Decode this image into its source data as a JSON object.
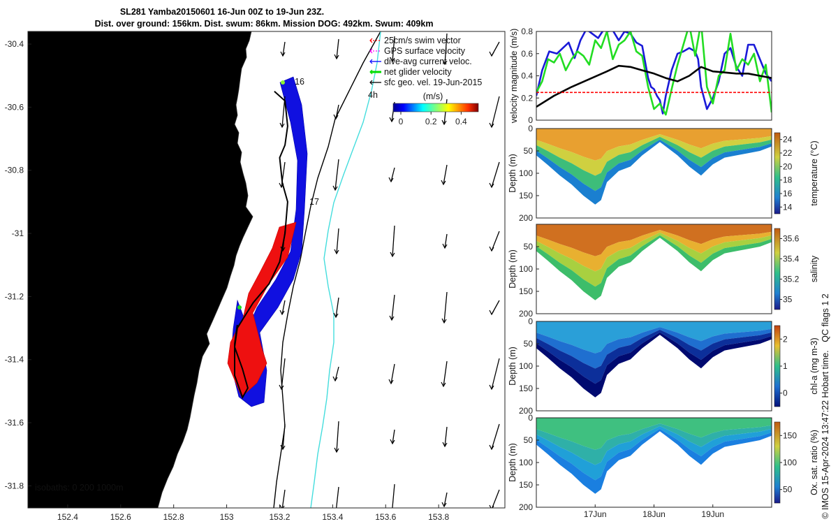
{
  "title": {
    "line1": "SL281 Yamba20150601 16-Jun 00Z to 19-Jun 23Z.",
    "line2": "Dist. over ground: 156km. Dist. swum: 86km. Mission DOG: 492km. Swum: 409km"
  },
  "map": {
    "legend": [
      "25cm/s swim vector",
      "GPS surface velocity",
      "dive-avg current veloc.",
      "net glider velocity",
      "sfc geo. vel. 19-Jun-2015"
    ],
    "legend_colors": [
      "#ff0000",
      "#ff00ff",
      "#0000ff",
      "#00dd00",
      "#000000"
    ],
    "colorbar_title": "(m/s)",
    "colorbar_ticks": [
      "0",
      "0.2",
      "0.4"
    ],
    "isobaths": "isobaths: 0   200  1000m",
    "day_labels": [
      "16",
      "17",
      "4h"
    ],
    "land_color": "#f9c895",
    "current_color": "#44dddd"
  },
  "chart_data": [
    {
      "type": "scatter",
      "name": "glider-track-map",
      "x_ticks": [
        "152.4",
        "152.6",
        "152.8",
        "153",
        "153.2",
        "153.4",
        "153.6",
        "153.8"
      ],
      "y_ticks": [
        "-30.4",
        "-30.6",
        "-30.8",
        "-31",
        "-31.2",
        "-31.4",
        "-31.6",
        "-31.8"
      ],
      "xlim": [
        152.25,
        154.05
      ],
      "ylim": [
        -31.87,
        -30.36
      ],
      "track": [
        [
          153.18,
          -30.55
        ],
        [
          153.22,
          -30.58
        ],
        [
          153.23,
          -30.66
        ],
        [
          153.22,
          -30.72
        ],
        [
          153.2,
          -30.76
        ],
        [
          153.21,
          -30.84
        ],
        [
          153.23,
          -30.9
        ],
        [
          153.22,
          -31.0
        ],
        [
          153.2,
          -31.09
        ],
        [
          153.16,
          -31.16
        ],
        [
          153.1,
          -31.22
        ],
        [
          153.07,
          -31.26
        ],
        [
          153.04,
          -31.3
        ],
        [
          153.03,
          -31.36
        ],
        [
          153.06,
          -31.43
        ],
        [
          153.08,
          -31.49
        ],
        [
          153.06,
          -31.52
        ],
        [
          153.03,
          -31.45
        ],
        [
          153.03,
          -31.35
        ],
        [
          153.04,
          -31.29
        ]
      ]
    },
    {
      "type": "line",
      "name": "velocity-magnitude",
      "ylabel": "velocity magnitude (m/s)",
      "y_ticks": [
        "0",
        "0.2",
        "0.4",
        "0.6",
        "0.8"
      ],
      "ylim": [
        0,
        0.8
      ],
      "xlim_days": [
        0,
        4
      ],
      "series": [
        {
          "color": "#1a1ad8",
          "x": [
            0,
            0.1,
            0.22,
            0.35,
            0.45,
            0.55,
            0.65,
            0.75,
            0.85,
            0.95,
            1.05,
            1.15,
            1.2,
            1.3,
            1.4,
            1.5,
            1.6,
            1.7,
            1.8,
            1.9,
            1.95,
            2.0,
            2.05,
            2.1,
            2.15,
            2.2,
            2.3,
            2.4,
            2.5,
            2.6,
            2.7,
            2.75,
            2.8,
            2.9,
            3.0,
            3.1,
            3.2,
            3.3,
            3.4,
            3.5,
            3.6,
            3.7,
            3.8,
            3.9,
            4.0
          ],
          "values": [
            0.22,
            0.45,
            0.62,
            0.6,
            0.65,
            0.7,
            0.56,
            0.72,
            0.82,
            0.78,
            0.74,
            0.82,
            0.8,
            0.81,
            0.72,
            0.8,
            0.78,
            0.7,
            0.67,
            0.38,
            0.3,
            0.28,
            0.22,
            0.18,
            0.06,
            0.22,
            0.45,
            0.6,
            0.62,
            0.65,
            0.62,
            0.55,
            0.3,
            0.1,
            0.2,
            0.35,
            0.6,
            0.65,
            0.48,
            0.4,
            0.68,
            0.68,
            0.55,
            0.42,
            0.35
          ]
        },
        {
          "color": "#22dd22",
          "x": [
            0,
            0.1,
            0.2,
            0.3,
            0.4,
            0.5,
            0.6,
            0.7,
            0.8,
            0.9,
            1.0,
            1.1,
            1.2,
            1.3,
            1.4,
            1.5,
            1.6,
            1.7,
            1.8,
            1.9,
            2.0,
            2.1,
            2.2,
            2.3,
            2.4,
            2.5,
            2.6,
            2.7,
            2.8,
            2.9,
            3.0,
            3.1,
            3.2,
            3.3,
            3.4,
            3.5,
            3.6,
            3.7,
            3.8,
            3.9,
            4.0
          ],
          "values": [
            0.25,
            0.35,
            0.55,
            0.52,
            0.6,
            0.45,
            0.55,
            0.62,
            0.58,
            0.5,
            0.72,
            0.65,
            0.8,
            0.55,
            0.68,
            0.72,
            0.8,
            0.62,
            0.58,
            0.3,
            0.1,
            0.15,
            0.05,
            0.28,
            0.5,
            0.68,
            0.86,
            0.58,
            0.88,
            0.3,
            0.15,
            0.4,
            0.45,
            0.78,
            0.45,
            0.55,
            0.5,
            0.6,
            0.35,
            0.5,
            0.07
          ]
        },
        {
          "color": "#000000",
          "x": [
            0,
            0.3,
            0.6,
            0.9,
            1.2,
            1.4,
            1.6,
            1.8,
            2.0,
            2.2,
            2.4,
            2.6,
            2.8,
            3.0,
            3.2,
            3.4,
            3.6,
            3.8,
            4.0
          ],
          "values": [
            0.12,
            0.22,
            0.3,
            0.37,
            0.44,
            0.49,
            0.48,
            0.45,
            0.42,
            0.38,
            0.35,
            0.4,
            0.48,
            0.44,
            0.43,
            0.42,
            0.42,
            0.4,
            0.38
          ]
        },
        {
          "color": "#ff0000",
          "dashed": true,
          "x": [
            0,
            4
          ],
          "values": [
            0.25,
            0.25
          ]
        }
      ]
    },
    {
      "type": "heatmap",
      "name": "temperature-section",
      "ylabel": "Depth (m)",
      "colorbar_label": "temperature (°C)",
      "colorbar_ticks": [
        "14",
        "16",
        "18",
        "20",
        "22",
        "24"
      ],
      "y_ticks": [
        "0",
        "50",
        "100",
        "150",
        "200"
      ],
      "ylim": [
        0,
        200
      ],
      "layer_colors": [
        "#e8a030",
        "#cfd040",
        "#3dbd7a",
        "#1a7fd0"
      ]
    },
    {
      "type": "heatmap",
      "name": "salinity-section",
      "ylabel": "Depth (m)",
      "colorbar_label": "salinity",
      "colorbar_ticks": [
        "35",
        "35.2",
        "35.4",
        "35.6"
      ],
      "y_ticks": [
        "50",
        "100",
        "150",
        "200"
      ],
      "ylim": [
        0,
        200
      ],
      "layer_colors": [
        "#d07020",
        "#e8b030",
        "#a8d040",
        "#3dbd6a"
      ]
    },
    {
      "type": "heatmap",
      "name": "chlorophyll-section",
      "ylabel": "Depth (m)",
      "colorbar_label": "chl-a (mg m-3)",
      "colorbar_ticks": [
        "0",
        "1",
        "2"
      ],
      "y_ticks": [
        "0",
        "50",
        "100",
        "150",
        "200"
      ],
      "ylim": [
        0,
        200
      ],
      "layer_colors": [
        "#2a9fd8",
        "#1f6fd0",
        "#0c2f9a",
        "#000a70"
      ]
    },
    {
      "type": "heatmap",
      "name": "oxygen-section",
      "ylabel": "Depth (m)",
      "colorbar_label": "Ox. sat. ratio (%)",
      "colorbar_ticks": [
        "50",
        "100",
        "150"
      ],
      "y_ticks": [
        "0",
        "50",
        "100",
        "150",
        "200"
      ],
      "ylim": [
        0,
        200
      ],
      "x_ticks": [
        "17Jun",
        "18Jun",
        "19Jun"
      ],
      "layer_colors": [
        "#3fc080",
        "#2fb0a8",
        "#20a0d8",
        "#1a7fe0"
      ]
    }
  ],
  "side_notes": {
    "qc_flags": "QC flags 1  2",
    "credit": "© IMOS 15-Apr-2024 13:47:22 Hobart time."
  }
}
